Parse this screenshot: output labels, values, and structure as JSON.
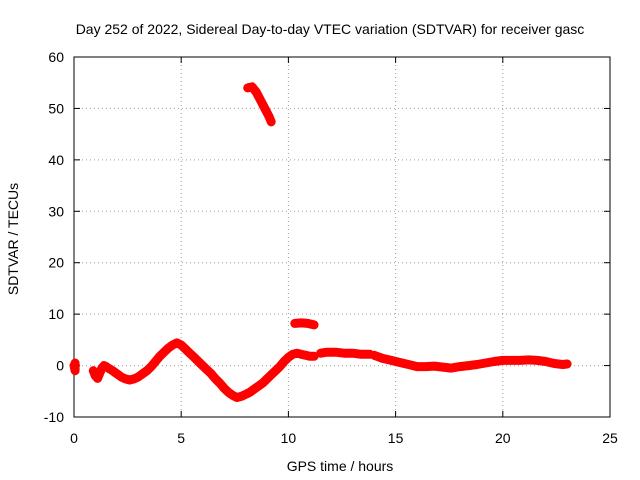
{
  "chart_data": {
    "type": "scatter",
    "title": "Day 252 of 2022, Sidereal Day-to-day VTEC variation (SDTVAR) for receiver gasc",
    "xlabel": "GPS time / hours",
    "ylabel": "SDTVAR / TECUs",
    "xlim": [
      0,
      25
    ],
    "ylim": [
      -10,
      60
    ],
    "xticks": [
      "0",
      "5",
      "10",
      "15",
      "20",
      "25"
    ],
    "yticks": [
      "-10",
      "0",
      "10",
      "20",
      "30",
      "40",
      "50",
      "60"
    ],
    "grid": true,
    "series": [
      {
        "name": "SDTVAR",
        "color": "#ff0000",
        "marker": "plus",
        "segments": [
          [
            [
              0.0,
              0.0
            ],
            [
              0.05,
              -1.0
            ],
            [
              0.05,
              0.5
            ]
          ],
          [
            [
              0.9,
              -1.0
            ],
            [
              1.0,
              -2.0
            ],
            [
              1.1,
              -2.5
            ],
            [
              1.2,
              -1.5
            ],
            [
              1.3,
              -0.5
            ],
            [
              1.4,
              0.0
            ],
            [
              1.5,
              -0.2
            ],
            [
              1.6,
              -0.5
            ],
            [
              1.8,
              -1.0
            ],
            [
              2.0,
              -1.6
            ],
            [
              2.2,
              -2.2
            ],
            [
              2.4,
              -2.6
            ],
            [
              2.6,
              -2.8
            ],
            [
              2.8,
              -2.6
            ],
            [
              3.0,
              -2.2
            ],
            [
              3.2,
              -1.6
            ],
            [
              3.4,
              -1.0
            ],
            [
              3.6,
              -0.2
            ],
            [
              3.8,
              0.8
            ],
            [
              4.0,
              1.8
            ],
            [
              4.2,
              2.6
            ],
            [
              4.4,
              3.4
            ],
            [
              4.6,
              4.0
            ],
            [
              4.8,
              4.4
            ],
            [
              5.0,
              4.0
            ],
            [
              5.2,
              3.2
            ],
            [
              5.4,
              2.4
            ],
            [
              5.6,
              1.6
            ],
            [
              5.8,
              0.8
            ],
            [
              6.0,
              0.0
            ],
            [
              6.2,
              -0.8
            ],
            [
              6.4,
              -1.6
            ],
            [
              6.6,
              -2.6
            ],
            [
              6.8,
              -3.4
            ],
            [
              7.0,
              -4.4
            ],
            [
              7.2,
              -5.2
            ],
            [
              7.4,
              -5.8
            ],
            [
              7.6,
              -6.2
            ],
            [
              7.8,
              -6.0
            ],
            [
              8.0,
              -5.6
            ],
            [
              8.2,
              -5.2
            ],
            [
              8.4,
              -4.6
            ],
            [
              8.6,
              -4.0
            ],
            [
              8.8,
              -3.4
            ],
            [
              9.0,
              -2.6
            ],
            [
              9.2,
              -1.8
            ],
            [
              9.4,
              -1.0
            ],
            [
              9.6,
              -0.2
            ],
            [
              9.8,
              0.8
            ],
            [
              10.0,
              1.6
            ],
            [
              10.2,
              2.2
            ],
            [
              10.4,
              2.4
            ],
            [
              10.6,
              2.2
            ],
            [
              10.8,
              2.0
            ],
            [
              11.0,
              1.8
            ],
            [
              11.2,
              1.8
            ]
          ],
          [
            [
              11.5,
              2.4
            ],
            [
              11.8,
              2.6
            ],
            [
              12.2,
              2.6
            ],
            [
              12.6,
              2.4
            ],
            [
              13.0,
              2.4
            ],
            [
              13.4,
              2.2
            ],
            [
              13.8,
              2.2
            ]
          ],
          [
            [
              14.0,
              2.0
            ],
            [
              14.4,
              1.4
            ],
            [
              14.8,
              1.0
            ],
            [
              15.2,
              0.6
            ],
            [
              15.6,
              0.2
            ],
            [
              16.0,
              -0.2
            ],
            [
              16.4,
              -0.2
            ],
            [
              16.8,
              -0.1
            ],
            [
              17.2,
              -0.3
            ],
            [
              17.6,
              -0.5
            ],
            [
              18.0,
              -0.2
            ],
            [
              18.4,
              0.0
            ],
            [
              18.8,
              0.2
            ],
            [
              19.2,
              0.5
            ],
            [
              19.6,
              0.8
            ],
            [
              20.0,
              1.0
            ],
            [
              20.4,
              1.0
            ],
            [
              20.8,
              1.0
            ],
            [
              21.2,
              1.1
            ],
            [
              21.6,
              1.0
            ],
            [
              22.0,
              0.8
            ],
            [
              22.4,
              0.4
            ],
            [
              22.8,
              0.2
            ],
            [
              23.0,
              0.3
            ]
          ],
          [
            [
              10.3,
              8.2
            ],
            [
              10.6,
              8.3
            ],
            [
              10.9,
              8.2
            ],
            [
              11.2,
              7.9
            ]
          ],
          [
            [
              8.1,
              54.0
            ],
            [
              8.3,
              54.2
            ],
            [
              8.5,
              53.2
            ],
            [
              8.7,
              51.6
            ],
            [
              8.9,
              50.0
            ],
            [
              9.1,
              48.4
            ],
            [
              9.2,
              47.4
            ]
          ]
        ]
      }
    ]
  }
}
